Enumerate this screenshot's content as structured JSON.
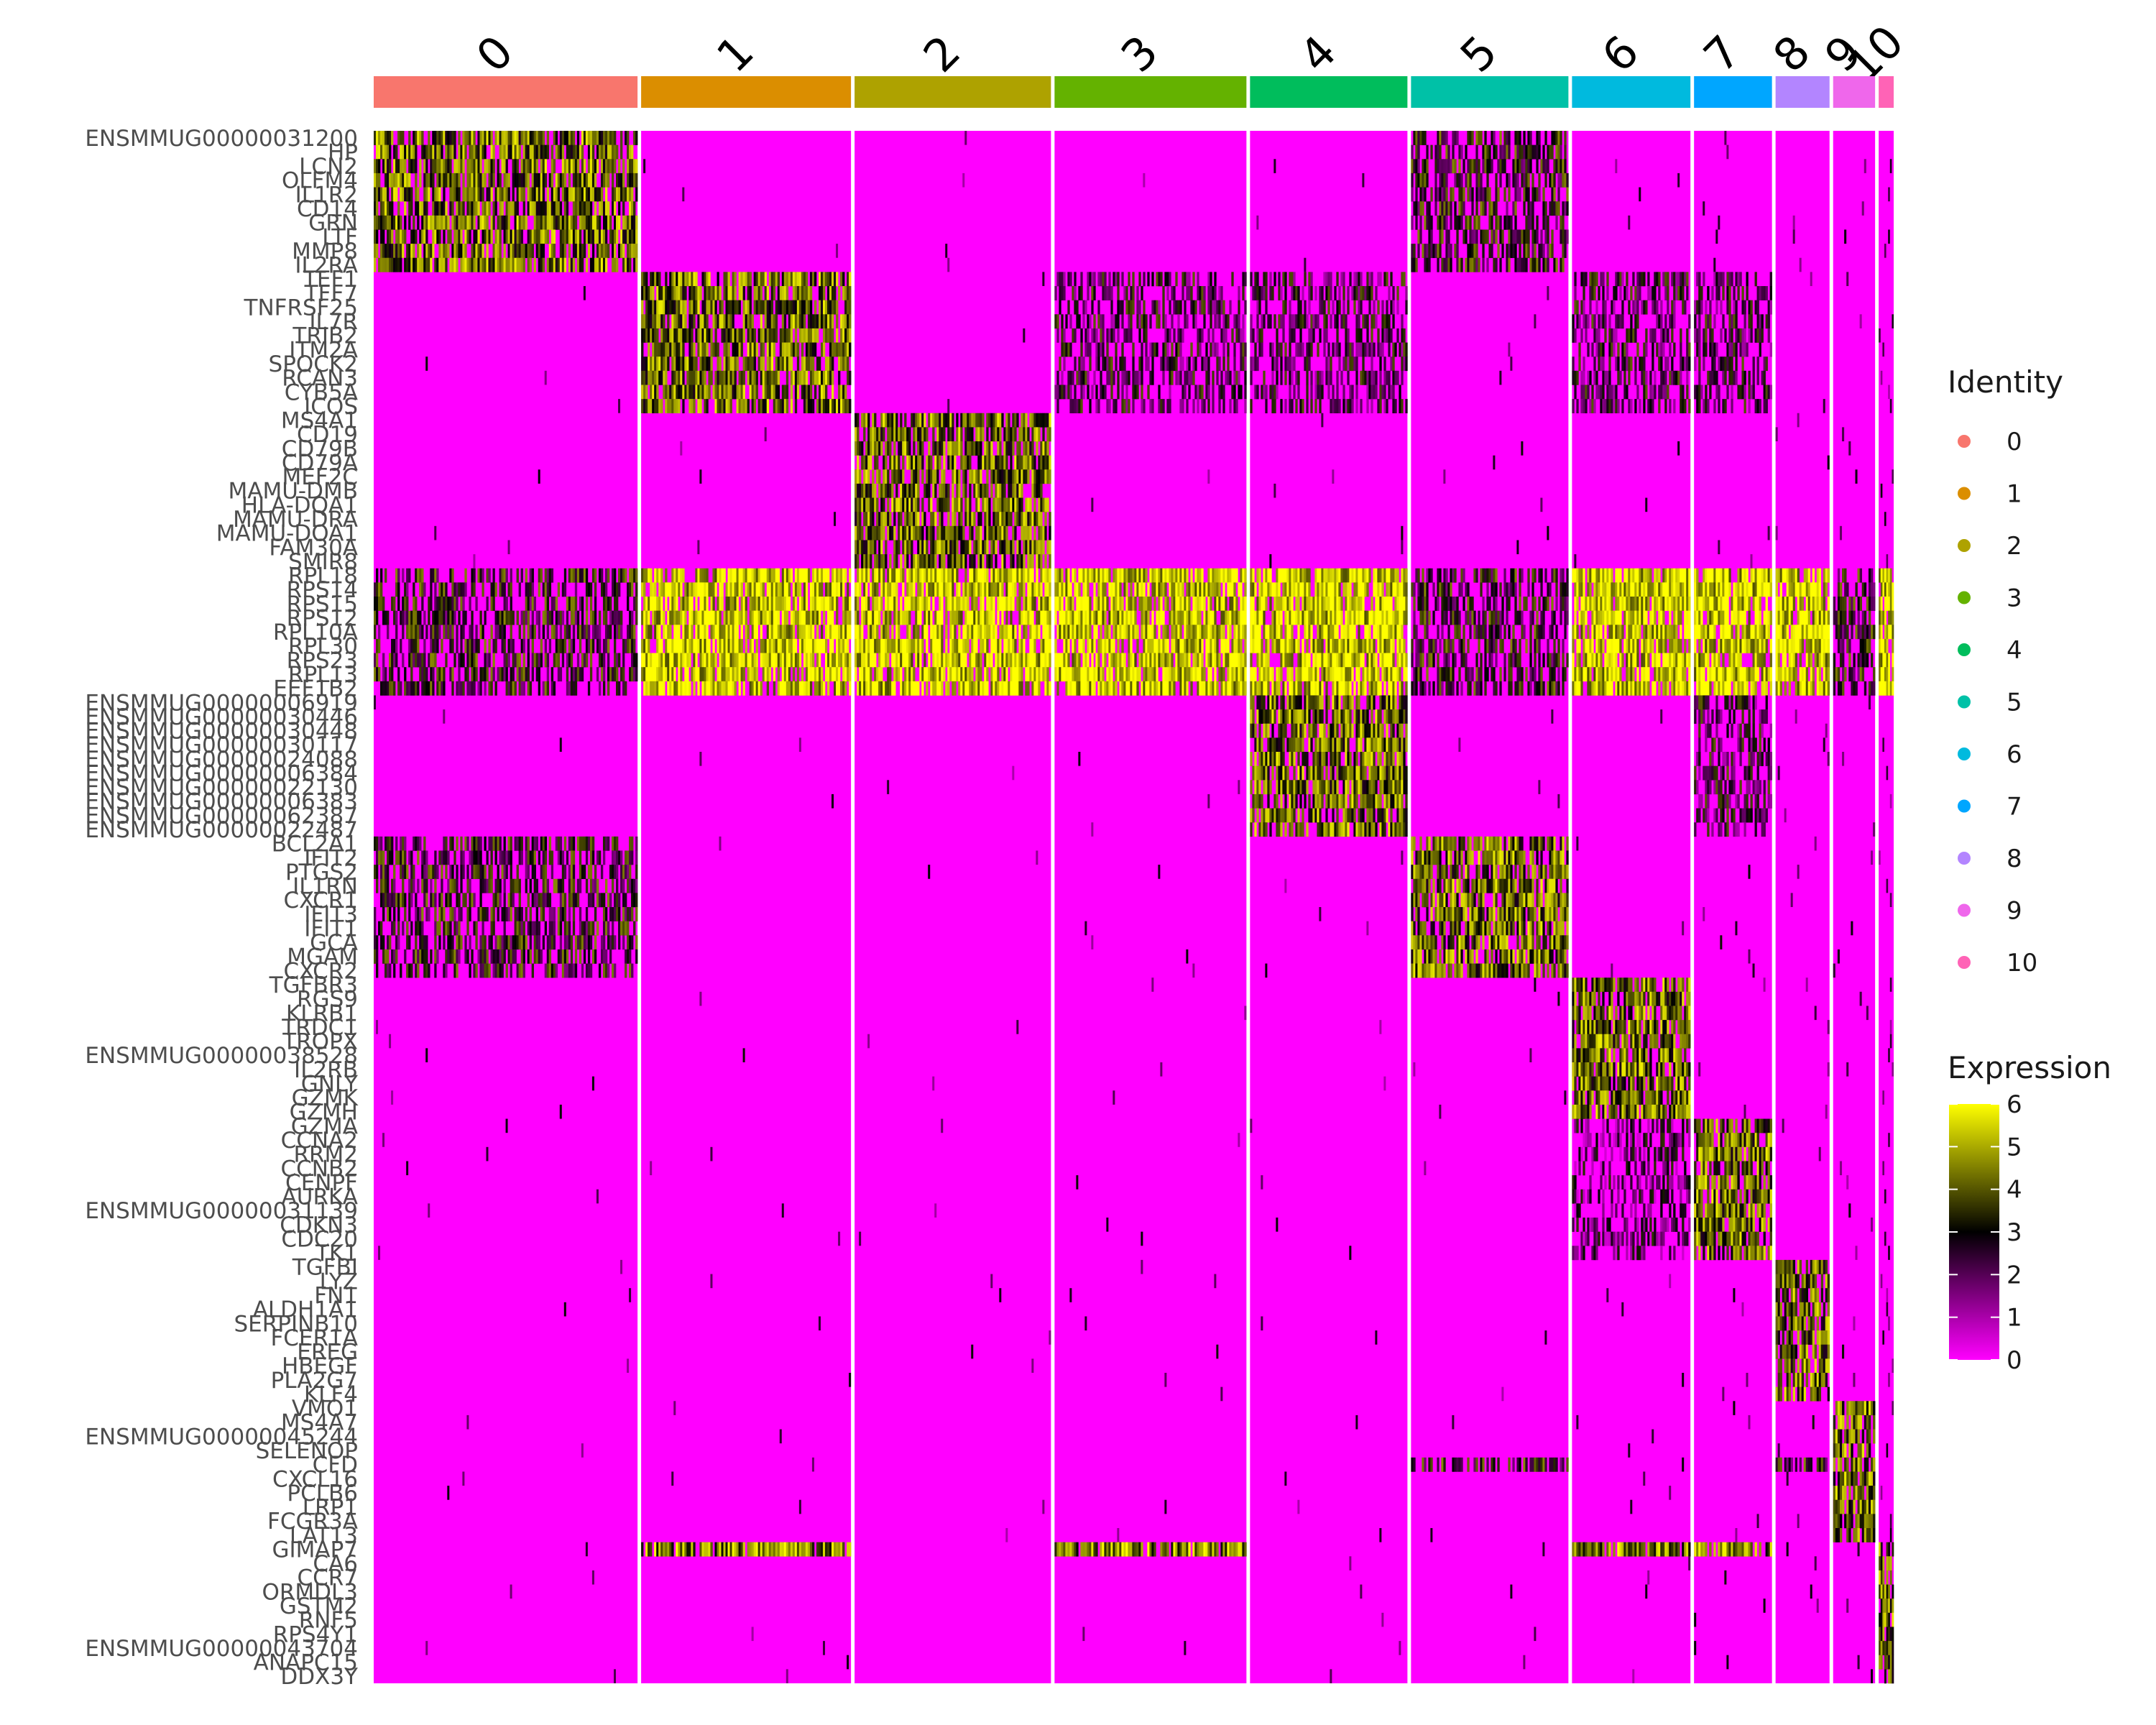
{
  "chart_data": {
    "type": "heatmap",
    "title": "",
    "clusters": [
      "0",
      "1",
      "2",
      "3",
      "4",
      "5",
      "6",
      "7",
      "8",
      "9",
      "10"
    ],
    "cluster_cell_fractions": [
      0.176,
      0.14,
      0.131,
      0.128,
      0.105,
      0.105,
      0.079,
      0.052,
      0.036,
      0.028,
      0.01
    ],
    "cluster_colors": [
      "#F8766D",
      "#DB8E00",
      "#AEA200",
      "#64B200",
      "#00BD5C",
      "#00C1A7",
      "#00BADE",
      "#00A6FF",
      "#B385FF",
      "#EF67EB",
      "#FF63B6"
    ],
    "genes": [
      "ENSMMUG00000031200",
      "HP",
      "LCN2",
      "OLFM4",
      "IL1R2",
      "CD14",
      "GRN",
      "LTF",
      "MMP8",
      "IL2RA",
      "TEF1",
      "TFF7",
      "TNFRSF25",
      "IL7R",
      "TRIB2",
      "ITM2A",
      "SPOCK2",
      "RCAN3",
      "CYB5A",
      "ICOS",
      "MS4A1",
      "CD19",
      "CD79B",
      "CD79A",
      "MEF2C",
      "MAMU-DMB",
      "HLA-DQA1",
      "MAMU-DRA",
      "MAMU-DOA1",
      "FAM30A",
      "SMIR8",
      "RPL18",
      "RPS14",
      "RPS15",
      "RPS12",
      "RPL10A",
      "RPL30",
      "RPS23",
      "RPL13",
      "EEF1B2",
      "ENSMMUG00000006919",
      "ENSMMUG00000030446",
      "ENSMMUG00000030448",
      "ENSMMUG00000030117",
      "ENSMMUG00000024088",
      "ENSMMUG00000006384",
      "ENSMMUG00000022130",
      "ENSMMUG00000006383",
      "ENSMMUG00000062387",
      "ENSMMUG00000022487",
      "BCL2A1",
      "IFIT2",
      "PTGS2",
      "IL1RN",
      "CXCR1",
      "IFIT3",
      "IFIT1",
      "GCA",
      "MGAM",
      "CXCR2",
      "TGFBR3",
      "RGS9",
      "KLRB1",
      "TRDC1",
      "TROPX",
      "ENSMMUG00000038528",
      "IL2RB",
      "GNLY",
      "GZMK",
      "GZMH",
      "GZMA",
      "CCNA2",
      "RRM2",
      "CCNB2",
      "CENPF",
      "AURKA",
      "ENSMMUG00000031139",
      "CDKN3",
      "CDC20",
      "TK1",
      "TGFBI",
      "LYZ",
      "FN1",
      "ALDH1A1",
      "SERPINB10",
      "FCER1A",
      "EREG",
      "HBEGF",
      "PLA2G7",
      "KLF4",
      "VMO1",
      "MS4A7",
      "ENSMMUG00000045244",
      "SELENOP",
      "CFD",
      "CXCL16",
      "PCLB6",
      "LRP1",
      "FCGR3A",
      "LAT13",
      "GIMAP7",
      "CA6",
      "CCR7",
      "ORMDL3",
      "GSTM2",
      "RNF5",
      "RPS4Y1",
      "ENSMMUG00000043704",
      "ANAPC15",
      "DDX3Y"
    ],
    "gene_labels_visible": [
      "ENSMMUG00000031200",
      "HP",
      "LCN2",
      "OLFM4",
      "IL1R2",
      "CD14",
      "GRN",
      "LTF",
      "MMP8",
      "IL2RA",
      "TEF1",
      "TFF7",
      "TNFRSF25",
      "IL7R",
      "TRIB2",
      "ITM2A",
      "SPOCK2",
      "RCAN3",
      "CYB5A",
      "ICOS",
      "MS4A1",
      "CD19",
      "CD79B",
      "CD79A",
      "MEF2C",
      "MAMU-DMB",
      "HLA-DQA1",
      "MAMU-DRA",
      "MAMU-DOA1",
      "FAM30A",
      "SMIR8",
      "RPL18",
      "RPS14",
      "RPS15",
      "RPS12",
      "RPL10A",
      "RPL30",
      "RPS23",
      "RPL13",
      "EEF1B2",
      "ENSMMUG00000006919",
      "ENSMMUG00000030446",
      "ENSMMUG00000030448",
      "ENSMMUG00000030117",
      "ENSMMUG00000024088",
      "ENSMMUG00000006384",
      "ENSMMUG00000022130",
      "ENSMMUG00000006383",
      "ENSMMUG00000062387",
      "ENSMMUG00000022487",
      "BCL2A1",
      "IFIT2",
      "PTGS2",
      "IL1RN",
      "CXCR1",
      "IFIT3",
      "IFIT1",
      "GCA",
      "MGAM",
      "CXCR2",
      "TGFBR3",
      "RGS9",
      "KLRB1",
      "TRDC1",
      "TROPX",
      "ENSMMUG00000038528",
      "IL2RB",
      "GNLY",
      "GZMK",
      "GZMH",
      "GZMA",
      "CCNA2",
      "RRM2",
      "CCNB2",
      "CENPF",
      "AURKA",
      "ENSMMUG00000031139",
      "CDKN3",
      "CDC20",
      "TK1",
      "TGFBI",
      "LYZ",
      "FN1",
      "ALDH1A1",
      "SERPINB10",
      "FCER1A",
      "EREG",
      "HBEGF",
      "PLA2G7",
      "KLF4",
      "VMO1",
      "MS4A7",
      "ENSMMUG00000045244",
      "SELENOP",
      "CFD",
      "CXCL16",
      "PCLB6",
      "LRP1",
      "FCGR3A",
      "LAT13",
      "GIMAP7",
      "CA6",
      "CCR7",
      "ORMDL3",
      "GSTM2",
      "RNF5",
      "RPS4Y1",
      "ENSMMUG00000043704",
      "ANAPC15",
      "DDX3Y"
    ],
    "gene_blocks": [
      {
        "cluster": "0",
        "start": 0,
        "end": 9
      },
      {
        "cluster": "1",
        "start": 10,
        "end": 19
      },
      {
        "cluster": "2",
        "start": 20,
        "end": 30
      },
      {
        "cluster": "3",
        "start": 31,
        "end": 39
      },
      {
        "cluster": "4",
        "start": 40,
        "end": 49
      },
      {
        "cluster": "5",
        "start": 50,
        "end": 59
      },
      {
        "cluster": "6",
        "start": 60,
        "end": 69
      },
      {
        "cluster": "7",
        "start": 70,
        "end": 79
      },
      {
        "cluster": "8",
        "start": 80,
        "end": 89
      },
      {
        "cluster": "9",
        "start": 90,
        "end": 99
      },
      {
        "cluster": "10",
        "start": 100,
        "end": 109
      }
    ],
    "secondary_expression": [
      {
        "genes": [
          31,
          39
        ],
        "clusters": [
          "1",
          "2",
          "3",
          "4",
          "6",
          "7",
          "8",
          "10"
        ],
        "level": 5.5
      },
      {
        "genes": [
          31,
          39
        ],
        "clusters": [
          "0",
          "5",
          "9"
        ],
        "level": 3.0
      },
      {
        "genes": [
          50,
          59
        ],
        "clusters": [
          "0"
        ],
        "level": 3.0
      },
      {
        "genes": [
          0,
          9
        ],
        "clusters": [
          "5"
        ],
        "level": 3.0
      },
      {
        "genes": [
          10,
          19
        ],
        "clusters": [
          "3",
          "4",
          "6",
          "7"
        ],
        "level": 2.5
      },
      {
        "genes": [
          100,
          100
        ],
        "clusters": [
          "1",
          "3",
          "6",
          "7"
        ],
        "level": 4.5
      },
      {
        "genes": [
          94,
          94
        ],
        "clusters": [
          "5",
          "8"
        ],
        "level": 3.0
      },
      {
        "genes": [
          70,
          79
        ],
        "clusters": [
          "6"
        ],
        "level": 2.0
      },
      {
        "genes": [
          40,
          49
        ],
        "clusters": [
          "7"
        ],
        "level": 2.5
      }
    ],
    "legend": {
      "position": "right",
      "identity_title": "Identity",
      "identity_labels": [
        "0",
        "1",
        "2",
        "3",
        "4",
        "5",
        "6",
        "7",
        "8",
        "9",
        "10"
      ],
      "expression_title": "Expression",
      "expression_ticks": [
        6,
        5,
        4,
        3,
        2,
        1,
        0
      ],
      "expression_range": [
        0,
        6
      ],
      "gradient_colors": [
        "#FF00FF",
        "#000000",
        "#FFFF00"
      ]
    },
    "xlabel": "",
    "ylabel": ""
  }
}
